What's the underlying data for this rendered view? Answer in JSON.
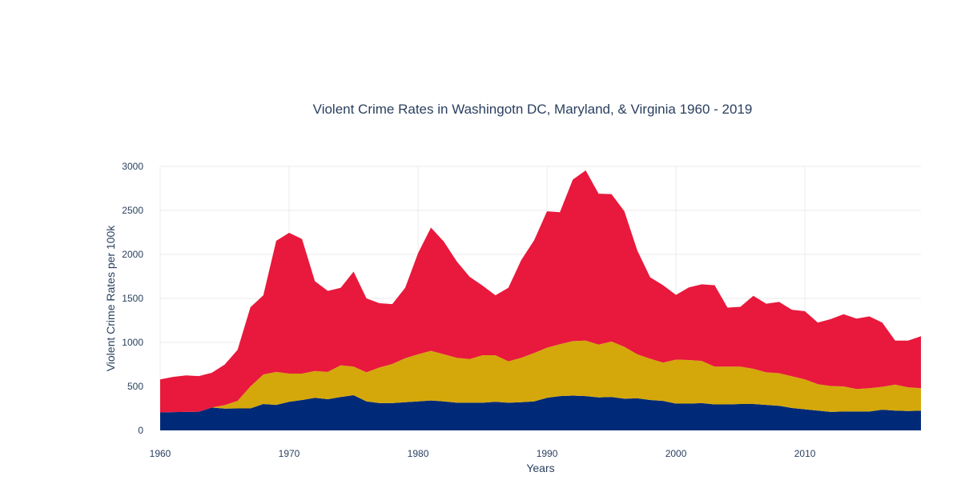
{
  "chart_data": {
    "type": "area",
    "stacked": true,
    "title": "Violent Crime Rates in Washingotn DC, Maryland, & Virginia 1960 - 2019",
    "xlabel": "Years",
    "ylabel": "Violent Crime Rates per 100k",
    "xlim": [
      1960,
      2019
    ],
    "ylim": [
      0,
      3000
    ],
    "x_ticks": [
      1960,
      1970,
      1980,
      1990,
      2000,
      2010
    ],
    "y_ticks": [
      0,
      500,
      1000,
      1500,
      2000,
      2500,
      3000
    ],
    "grid": true,
    "legend": "none",
    "x": [
      1960,
      1961,
      1962,
      1963,
      1964,
      1965,
      1966,
      1967,
      1968,
      1969,
      1970,
      1971,
      1972,
      1973,
      1974,
      1975,
      1976,
      1977,
      1978,
      1979,
      1980,
      1981,
      1982,
      1983,
      1984,
      1985,
      1986,
      1987,
      1988,
      1989,
      1990,
      1991,
      1992,
      1993,
      1994,
      1995,
      1996,
      1997,
      1998,
      1999,
      2000,
      2001,
      2002,
      2003,
      2004,
      2005,
      2006,
      2007,
      2008,
      2009,
      2010,
      2011,
      2012,
      2013,
      2014,
      2015,
      2016,
      2017,
      2018,
      2019
    ],
    "series": [
      {
        "color": "#002a78",
        "values": [
          205,
          208,
          210,
          212,
          260,
          248,
          250,
          250,
          300,
          290,
          325,
          345,
          370,
          355,
          380,
          400,
          330,
          310,
          310,
          320,
          330,
          340,
          330,
          315,
          315,
          315,
          325,
          315,
          320,
          330,
          370,
          390,
          395,
          390,
          375,
          380,
          360,
          365,
          345,
          335,
          305,
          305,
          310,
          295,
          295,
          300,
          300,
          290,
          280,
          255,
          240,
          225,
          210,
          215,
          215,
          215,
          235,
          225,
          220,
          225
        ]
      },
      {
        "color": "#d4a80a",
        "values": [
          0,
          0,
          0,
          0,
          0,
          40,
          85,
          250,
          335,
          375,
          320,
          300,
          305,
          310,
          360,
          325,
          330,
          405,
          445,
          500,
          535,
          565,
          535,
          510,
          495,
          540,
          530,
          470,
          505,
          550,
          570,
          590,
          620,
          630,
          600,
          630,
          590,
          500,
          470,
          435,
          500,
          495,
          480,
          430,
          430,
          425,
          400,
          370,
          370,
          360,
          340,
          300,
          295,
          285,
          255,
          265,
          260,
          295,
          270,
          255
        ]
      },
      {
        "color": "#e8193c",
        "values": [
          375,
          400,
          415,
          405,
          395,
          460,
          580,
          900,
          900,
          1490,
          1600,
          1530,
          1020,
          920,
          880,
          1080,
          840,
          730,
          680,
          800,
          1150,
          1400,
          1280,
          1095,
          935,
          790,
          680,
          835,
          1110,
          1280,
          1550,
          1500,
          1835,
          1935,
          1715,
          1675,
          1540,
          1180,
          925,
          880,
          735,
          825,
          870,
          925,
          670,
          680,
          830,
          780,
          810,
          755,
          775,
          700,
          760,
          820,
          800,
          815,
          730,
          500,
          530,
          590
        ]
      }
    ]
  }
}
